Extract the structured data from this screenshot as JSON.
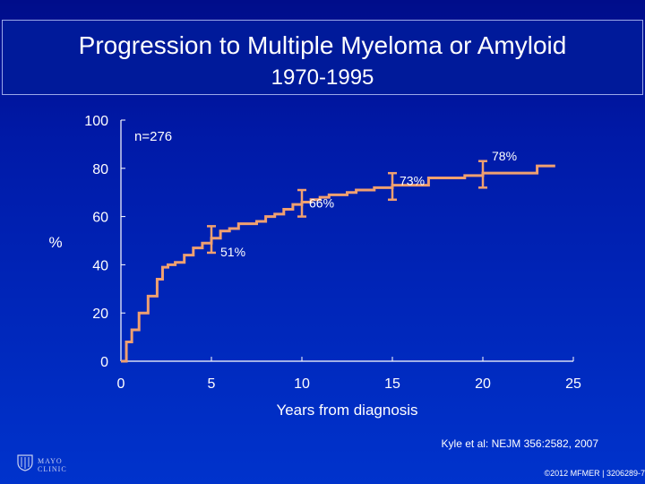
{
  "title": {
    "line1": "Progression to Multiple Myeloma or Amyloid",
    "line2": "1970-1995"
  },
  "citation": "Kyle et al: NEJM 356:2582, 2007",
  "copyright": "©2012 MFMER | 3206289-7",
  "logo": {
    "text": "MAYO CLINIC"
  },
  "colors": {
    "background": "#0022b8",
    "curve": "#f0a070",
    "text": "#ffffff"
  },
  "chart_data": {
    "type": "line",
    "step": true,
    "xlabel": "Years from diagnosis",
    "ylabel": "%",
    "xlim": [
      0,
      25
    ],
    "ylim": [
      0,
      100
    ],
    "xticks": [
      0,
      5,
      10,
      15,
      20,
      25
    ],
    "yticks": [
      0,
      20,
      40,
      60,
      80,
      100
    ],
    "grid": false,
    "annotation_n": "n=276",
    "series": [
      {
        "x": [
          0,
          0.3,
          0.6,
          1.0,
          1.5,
          2.0,
          2.3,
          2.6,
          3.0,
          3.5,
          4.0,
          4.5,
          5.0,
          5.5,
          6.0,
          6.5,
          7.0,
          7.5,
          8.0,
          8.5,
          9.0,
          9.5,
          10.0,
          10.5,
          11.0,
          11.5,
          12.0,
          12.5,
          13.0,
          14.0,
          15.0,
          16.0,
          17.0,
          18.0,
          19.0,
          19.5,
          20.0,
          21.0,
          22.0,
          23.0,
          24.0
        ],
        "y": [
          0,
          8,
          13,
          20,
          27,
          34,
          39,
          40,
          41,
          44,
          47,
          49,
          51,
          54,
          55,
          57,
          57,
          58,
          60,
          61,
          63,
          65,
          66,
          67,
          68,
          69,
          69,
          70,
          71,
          72,
          73,
          73,
          76,
          76,
          77,
          77,
          78,
          78,
          78,
          81,
          81
        ]
      }
    ],
    "error_bars": [
      {
        "x": 5,
        "y": 51,
        "low": 45,
        "high": 56,
        "label": "51%"
      },
      {
        "x": 10,
        "y": 66,
        "low": 60,
        "high": 71,
        "label": "66%"
      },
      {
        "x": 15,
        "y": 73,
        "low": 67,
        "high": 78,
        "label": "73%"
      },
      {
        "x": 20,
        "y": 78,
        "low": 72,
        "high": 83,
        "label": "78%"
      }
    ]
  }
}
